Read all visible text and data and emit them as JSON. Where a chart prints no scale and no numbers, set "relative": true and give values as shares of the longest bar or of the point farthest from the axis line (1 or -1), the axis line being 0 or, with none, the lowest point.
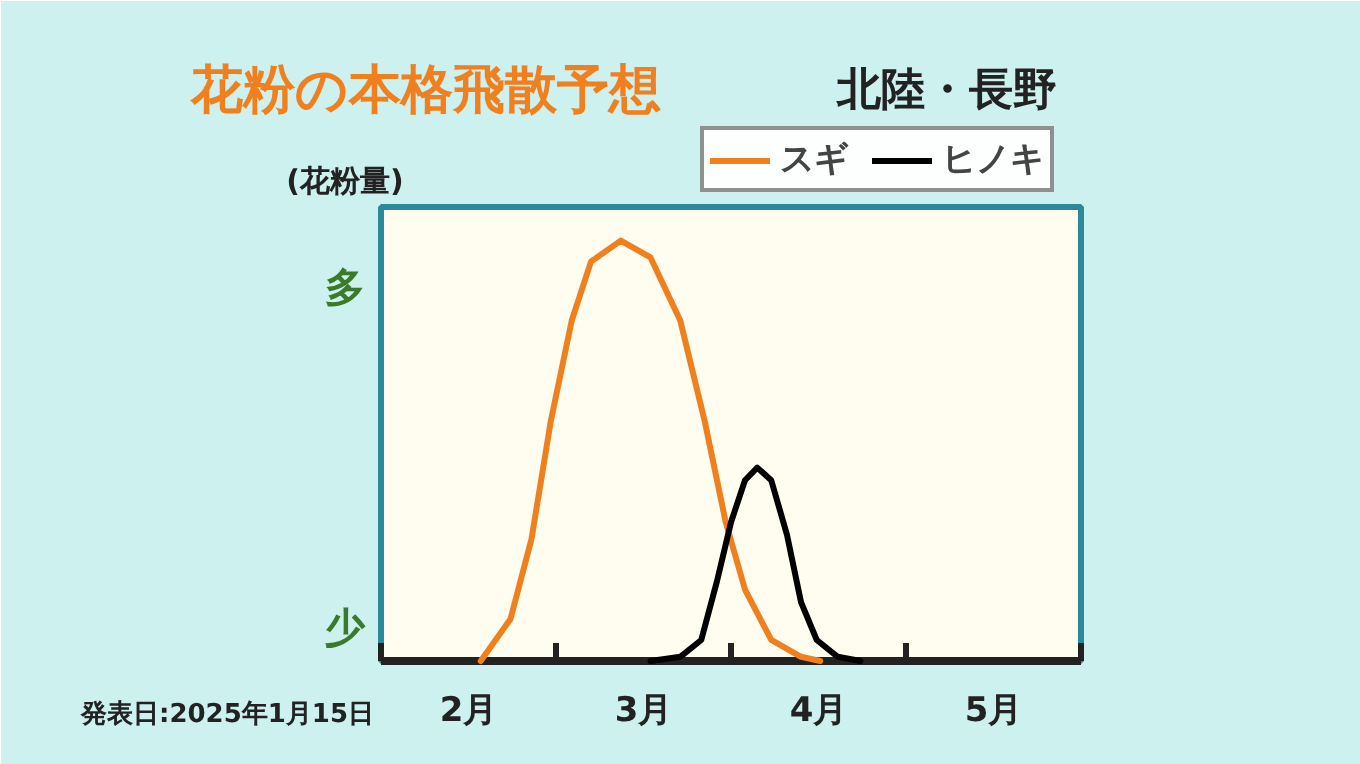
{
  "chart_data": {
    "type": "line",
    "title": "花粉の本格飛散予想",
    "subtitle": "北陸・長野",
    "ylabel": "(花粉量)",
    "relative": true,
    "legend": "top right",
    "grid": false,
    "annotations": [
      "多",
      "少",
      "発表日:2025年1月15日"
    ],
    "xlim": [
      2,
      6
    ],
    "xticks": [
      {
        "value": 2,
        "label": null
      },
      {
        "value": 2.5,
        "label": "2月"
      },
      {
        "value": 3,
        "label": null
      },
      {
        "value": 3.5,
        "label": "3月"
      },
      {
        "value": 4,
        "label": null
      },
      {
        "value": 4.5,
        "label": "4月"
      },
      {
        "value": 5,
        "label": null
      },
      {
        "value": 5.5,
        "label": "5月"
      },
      {
        "value": 6,
        "label": null
      }
    ],
    "series": [
      {
        "name": "スギ",
        "color": "#f07f1e",
        "x": [
          2.57,
          2.74,
          2.86,
          2.97,
          3.09,
          3.2,
          3.37,
          3.54,
          3.71,
          3.85,
          3.97,
          4.08,
          4.23,
          4.4,
          4.51
        ],
        "values": [
          0,
          0.1,
          0.29,
          0.57,
          0.81,
          0.95,
          1,
          0.96,
          0.81,
          0.57,
          0.33,
          0.17,
          0.05,
          0.01,
          0
        ]
      },
      {
        "name": "ヒノキ",
        "color": "#000000",
        "x": [
          3.54,
          3.71,
          3.83,
          3.92,
          4.0,
          4.08,
          4.15,
          4.23,
          4.32,
          4.4,
          4.49,
          4.61,
          4.74
        ],
        "values": [
          0,
          0.01,
          0.05,
          0.19,
          0.33,
          0.43,
          0.46,
          0.43,
          0.3,
          0.14,
          0.05,
          0.01,
          0
        ]
      }
    ]
  }
}
